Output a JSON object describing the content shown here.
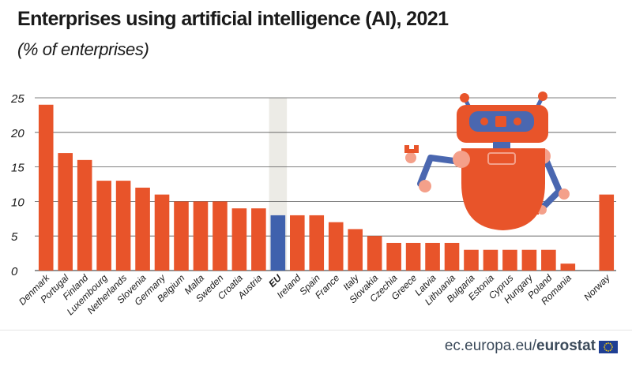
{
  "title": "Enterprises using artificial intelligence (AI), 2021",
  "subtitle": "(% of enterprises)",
  "footer": {
    "site": "ec.europa.eu/",
    "brand": "eurostat"
  },
  "colors": {
    "bar": "#e8542a",
    "eu_bar": "#3f61ad",
    "eu_highlight": "#ecebe6",
    "grid": "#555555",
    "text": "#1a1a1a"
  },
  "chart_data": {
    "type": "bar",
    "categories": [
      "Denmark",
      "Portugal",
      "Finland",
      "Luxembourg",
      "Netherlands",
      "Slovenia",
      "Germany",
      "Belgium",
      "Malta",
      "Sweden",
      "Croatia",
      "Austria",
      "EU",
      "Ireland",
      "Spain",
      "France",
      "Italy",
      "Slovakia",
      "Czechia",
      "Greece",
      "Latvia",
      "Lithuania",
      "Bulgaria",
      "Estonia",
      "Cyprus",
      "Hungary",
      "Poland",
      "Romania",
      "",
      "Norway"
    ],
    "values": [
      24,
      17,
      16,
      13,
      13,
      12,
      11,
      10,
      10,
      10,
      9,
      9,
      8,
      8,
      8,
      7,
      6,
      5,
      4,
      4,
      4,
      4,
      3,
      3,
      3,
      3,
      3,
      1,
      null,
      11
    ],
    "highlight": "EU",
    "title": "Enterprises using artificial intelligence (AI), 2021",
    "subtitle": "(% of enterprises)",
    "xlabel": "",
    "ylabel": "",
    "ylim": [
      0,
      25
    ],
    "yticks": [
      0,
      5,
      10,
      15,
      20,
      25
    ],
    "grid": true,
    "legend": "none"
  },
  "illustration": {
    "name": "robot-icon",
    "body_color": "#e8542a",
    "limb_color": "#4a67b0"
  }
}
